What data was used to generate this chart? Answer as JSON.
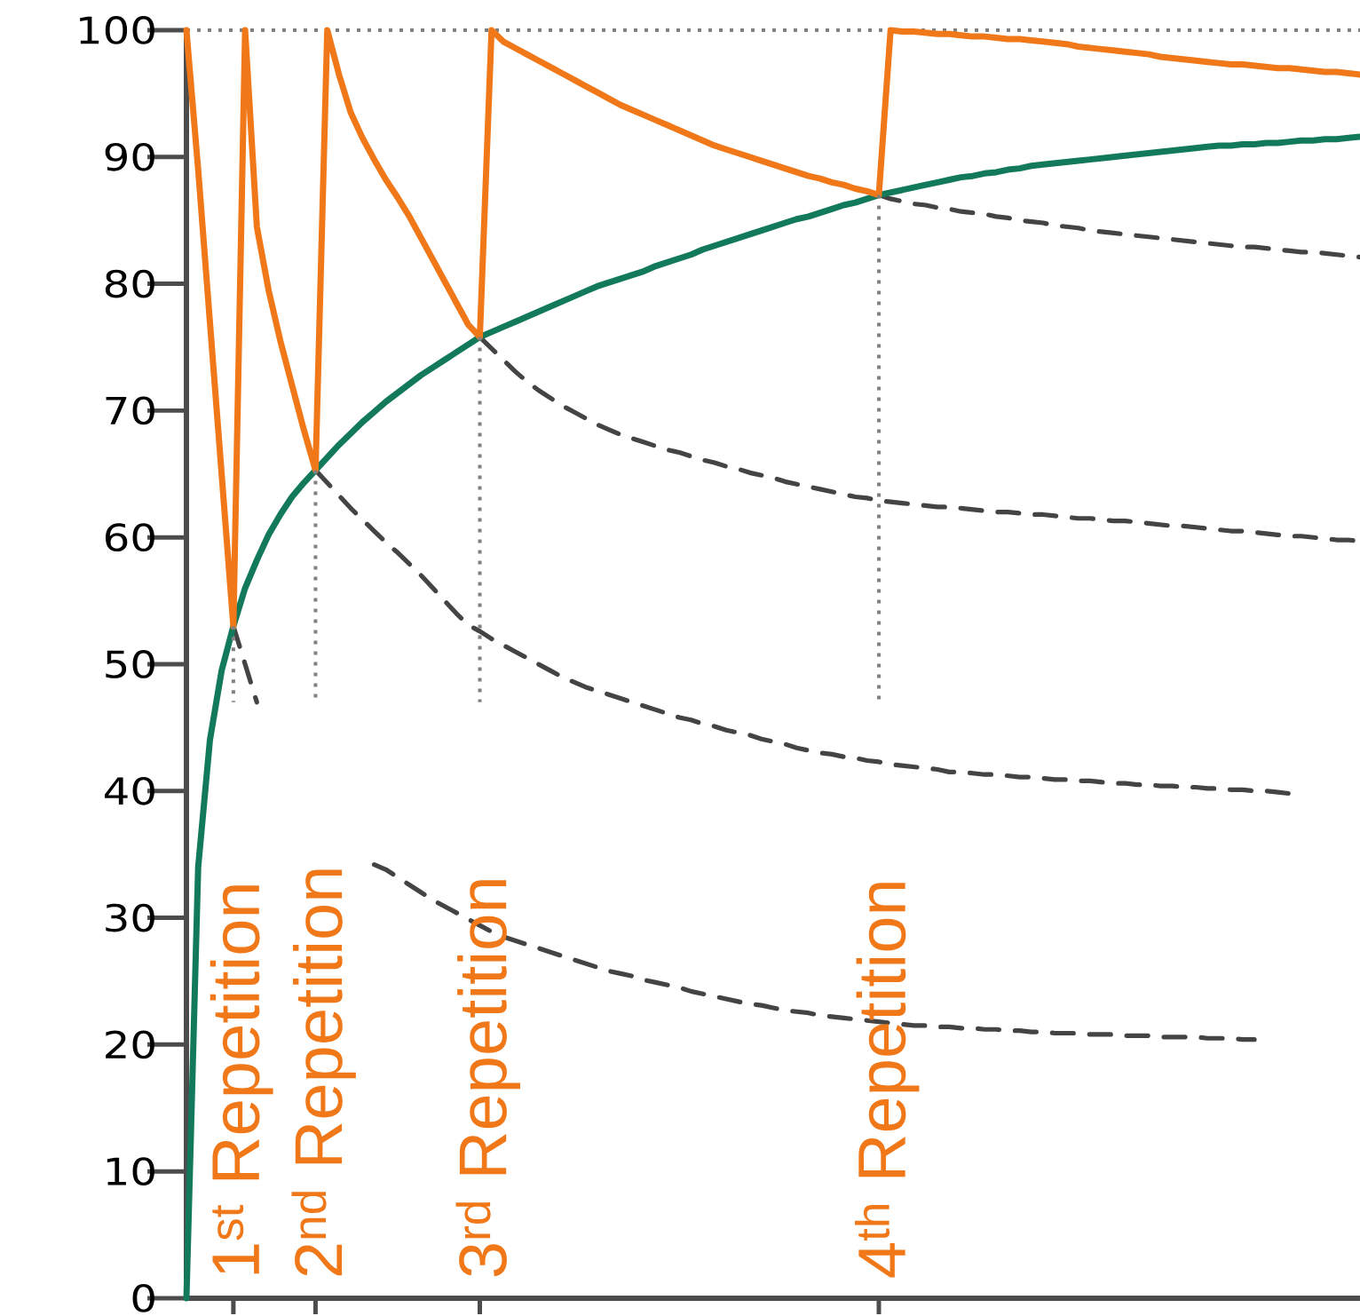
{
  "chart_data": {
    "type": "line",
    "ylim": [
      0,
      100
    ],
    "yticks": [
      0,
      10,
      20,
      30,
      40,
      50,
      60,
      70,
      80,
      90,
      100
    ],
    "categories": [
      null,
      null,
      null,
      null,
      null,
      null,
      null,
      null,
      null,
      null,
      null,
      null,
      null,
      null,
      null,
      null,
      null,
      null,
      null,
      null,
      null,
      null,
      null,
      null,
      null,
      null,
      null,
      null,
      null,
      null,
      null,
      null,
      null,
      null,
      null,
      null,
      null,
      null,
      null,
      null,
      null,
      null,
      null,
      null,
      null,
      null,
      null,
      null,
      null,
      null,
      null,
      null,
      null,
      null,
      null,
      null,
      null,
      null,
      null,
      null,
      null,
      null,
      null,
      null,
      null,
      null,
      null,
      null,
      null,
      null,
      null,
      null,
      null,
      null,
      null,
      null,
      null,
      null,
      null,
      null,
      null,
      null,
      null,
      null,
      null,
      null,
      null,
      null,
      null,
      null,
      null,
      null,
      null,
      null,
      null,
      null,
      null,
      null,
      null,
      null,
      null
    ],
    "tick_labels": "y",
    "grid": false,
    "ref_lines": [
      {
        "axis": "y",
        "value": 100,
        "color": "#808080",
        "line_style": "dotted"
      }
    ],
    "series": [
      {
        "color": "#444444",
        "line_style": "dashed",
        "values": [
          null,
          null,
          null,
          null,
          53,
          50,
          47,
          null,
          null,
          null,
          null,
          null,
          null,
          null,
          null,
          null,
          null,
          null,
          null,
          null,
          null,
          null,
          null,
          null,
          null,
          null,
          null,
          null,
          null,
          null,
          null,
          null,
          null,
          null,
          null,
          null,
          null,
          null,
          null,
          null,
          null,
          null,
          null,
          null,
          null,
          null,
          null,
          null,
          null,
          null,
          null,
          null,
          null,
          null,
          null,
          null,
          null,
          null,
          null,
          null,
          null,
          null,
          null,
          null,
          null,
          null,
          null,
          null,
          null,
          null,
          null,
          null,
          null,
          null,
          null,
          null,
          null,
          null,
          null,
          null,
          null,
          null,
          null,
          null,
          null,
          null,
          null,
          null,
          null,
          null,
          null,
          null,
          null,
          null,
          null,
          null,
          null,
          null,
          null,
          null,
          null
        ]
      },
      {
        "color": "#444444",
        "line_style": "dashed",
        "values": [
          null,
          null,
          null,
          null,
          null,
          null,
          null,
          null,
          null,
          null,
          null,
          null,
          null,
          null,
          null,
          null,
          34.2,
          33.8,
          33.2,
          32.6,
          32.0,
          31.4,
          30.9,
          30.4,
          29.9,
          29.4,
          28.9,
          28.5,
          28.2,
          27.9,
          27.6,
          27.3,
          27.0,
          26.7,
          26.4,
          26.1,
          25.8,
          25.6,
          25.4,
          25.1,
          24.9,
          24.7,
          24.5,
          24.2,
          24.0,
          23.8,
          23.6,
          23.4,
          23.2,
          23.1,
          22.9,
          22.7,
          22.6,
          22.5,
          22.3,
          22.2,
          22.1,
          22.0,
          21.9,
          21.8,
          21.7,
          21.6,
          21.5,
          21.5,
          21.4,
          21.4,
          21.3,
          21.3,
          21.2,
          21.2,
          21.1,
          21.1,
          21.0,
          21.0,
          20.9,
          20.9,
          20.9,
          20.8,
          20.8,
          20.8,
          20.7,
          20.7,
          20.7,
          20.6,
          20.6,
          20.6,
          20.6,
          20.5,
          20.5,
          20.5,
          20.4,
          20.4,
          null,
          null,
          null,
          null,
          null,
          null,
          null,
          null,
          null
        ]
      },
      {
        "color": "#444444",
        "line_style": "dashed",
        "values": [
          null,
          null,
          null,
          null,
          null,
          null,
          null,
          null,
          null,
          null,
          null,
          65.3,
          64.3,
          63.3,
          62.3,
          61.4,
          60.5,
          59.6,
          58.8,
          57.9,
          57.0,
          56.0,
          55.0,
          54.0,
          53.1,
          52.6,
          52.0,
          51.5,
          51.0,
          50.5,
          50.0,
          49.5,
          49.0,
          48.6,
          48.2,
          47.9,
          47.6,
          47.3,
          47.0,
          46.7,
          46.4,
          46.1,
          45.8,
          45.6,
          45.3,
          45.1,
          44.8,
          44.6,
          44.4,
          44.1,
          43.9,
          43.7,
          43.4,
          43.2,
          43.0,
          42.9,
          42.7,
          42.6,
          42.4,
          42.3,
          42.1,
          42.0,
          41.9,
          41.8,
          41.7,
          41.5,
          41.5,
          41.4,
          41.3,
          41.3,
          41.2,
          41.1,
          41.1,
          41.0,
          40.9,
          40.9,
          40.8,
          40.8,
          40.7,
          40.6,
          40.6,
          40.5,
          40.5,
          40.4,
          40.4,
          40.3,
          40.3,
          40.2,
          40.2,
          40.1,
          40.1,
          40.0,
          40.0,
          39.9,
          39.8,
          null,
          null,
          null,
          null,
          null,
          null
        ]
      },
      {
        "color": "#444444",
        "line_style": "dashed",
        "values": [
          null,
          null,
          null,
          null,
          null,
          null,
          null,
          null,
          null,
          null,
          null,
          null,
          null,
          null,
          null,
          null,
          null,
          null,
          null,
          null,
          null,
          null,
          null,
          null,
          null,
          75.8,
          74.9,
          74.0,
          73.1,
          72.3,
          71.6,
          71.0,
          70.4,
          69.9,
          69.4,
          68.9,
          68.5,
          68.1,
          67.8,
          67.5,
          67.2,
          66.9,
          66.7,
          66.4,
          66.1,
          65.9,
          65.6,
          65.4,
          65.1,
          64.9,
          64.7,
          64.4,
          64.2,
          64.0,
          63.8,
          63.6,
          63.4,
          63.2,
          63.1,
          62.9,
          62.8,
          62.7,
          62.6,
          62.5,
          62.4,
          62.4,
          62.3,
          62.2,
          62.1,
          62.0,
          62.0,
          61.9,
          61.8,
          61.8,
          61.7,
          61.6,
          61.5,
          61.5,
          61.4,
          61.3,
          61.3,
          61.2,
          61.1,
          61.0,
          60.9,
          60.9,
          60.8,
          60.7,
          60.6,
          60.5,
          60.5,
          60.4,
          60.3,
          60.2,
          60.1,
          60.1,
          60.0,
          59.9,
          59.8,
          59.8,
          59.7
        ]
      },
      {
        "color": "#444444",
        "line_style": "dashed",
        "values": [
          null,
          null,
          null,
          null,
          null,
          null,
          null,
          null,
          null,
          null,
          null,
          null,
          null,
          null,
          null,
          null,
          null,
          null,
          null,
          null,
          null,
          null,
          null,
          null,
          null,
          null,
          null,
          null,
          null,
          null,
          null,
          null,
          null,
          null,
          null,
          null,
          null,
          null,
          null,
          null,
          null,
          null,
          null,
          null,
          null,
          null,
          null,
          null,
          null,
          null,
          null,
          null,
          null,
          null,
          null,
          null,
          null,
          null,
          null,
          87.0,
          86.7,
          86.5,
          86.3,
          86.2,
          86.0,
          85.9,
          85.7,
          85.6,
          85.5,
          85.3,
          85.2,
          85.0,
          84.9,
          84.8,
          84.6,
          84.5,
          84.4,
          84.2,
          84.1,
          84.0,
          83.9,
          83.8,
          83.7,
          83.6,
          83.5,
          83.4,
          83.3,
          83.2,
          83.1,
          83.0,
          82.9,
          82.9,
          82.8,
          82.7,
          82.6,
          82.5,
          82.5,
          82.4,
          82.3,
          82.2,
          82.1
        ]
      },
      {
        "color": "#127a5a",
        "line_style": "solid",
        "values": [
          0,
          34,
          44,
          49.5,
          53,
          56,
          58.2,
          60.2,
          61.8,
          63.2,
          64.3,
          65.3,
          66.3,
          67.3,
          68.2,
          69.1,
          69.9,
          70.7,
          71.4,
          72.1,
          72.8,
          73.4,
          74.0,
          74.6,
          75.2,
          75.8,
          76.2,
          76.6,
          77.0,
          77.4,
          77.8,
          78.2,
          78.6,
          79.0,
          79.4,
          79.8,
          80.1,
          80.4,
          80.7,
          81.0,
          81.4,
          81.7,
          82.0,
          82.3,
          82.7,
          83.0,
          83.3,
          83.6,
          83.9,
          84.2,
          84.5,
          84.8,
          85.1,
          85.3,
          85.6,
          85.9,
          86.2,
          86.4,
          86.7,
          87.0,
          87.2,
          87.4,
          87.6,
          87.8,
          88.0,
          88.2,
          88.4,
          88.5,
          88.7,
          88.8,
          89.0,
          89.1,
          89.3,
          89.4,
          89.5,
          89.6,
          89.7,
          89.8,
          89.9,
          90.0,
          90.1,
          90.2,
          90.3,
          90.4,
          90.5,
          90.6,
          90.7,
          90.8,
          90.9,
          90.9,
          91.0,
          91.0,
          91.1,
          91.1,
          91.2,
          91.3,
          91.3,
          91.4,
          91.4,
          91.5,
          91.6
        ]
      },
      {
        "color": "#f07818",
        "line_style": "solid",
        "values": [
          100,
          89,
          77,
          65,
          53,
          100,
          84.5,
          79.5,
          75.5,
          72,
          68.5,
          65.3,
          100,
          96.5,
          93.5,
          91.5,
          89.8,
          88.2,
          86.8,
          85.3,
          83.6,
          81.9,
          80.2,
          78.5,
          76.8,
          75.8,
          100,
          99.1,
          98.6,
          98.1,
          97.6,
          97.1,
          96.6,
          96.1,
          95.6,
          95.1,
          94.6,
          94.1,
          93.7,
          93.3,
          92.9,
          92.5,
          92.1,
          91.7,
          91.3,
          90.9,
          90.6,
          90.3,
          90.0,
          89.7,
          89.4,
          89.1,
          88.8,
          88.5,
          88.3,
          88.0,
          87.8,
          87.5,
          87.3,
          87.0,
          100,
          99.9,
          99.9,
          99.8,
          99.7,
          99.7,
          99.6,
          99.5,
          99.5,
          99.4,
          99.3,
          99.3,
          99.2,
          99.1,
          99.0,
          98.9,
          98.7,
          98.6,
          98.5,
          98.4,
          98.3,
          98.2,
          98.1,
          97.9,
          97.8,
          97.7,
          97.6,
          97.5,
          97.4,
          97.3,
          97.3,
          97.2,
          97.1,
          97.0,
          97.0,
          96.9,
          96.8,
          96.7,
          96.7,
          96.6,
          96.5
        ]
      }
    ],
    "annotations": [
      "1$^{st}$ Repetition",
      "2$^{nd}$ Repetition",
      "3$^{rd}$ Repetition",
      "4$^{th}$ Repetition"
    ]
  }
}
